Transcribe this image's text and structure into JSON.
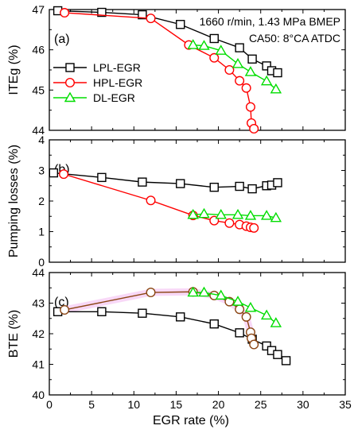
{
  "chart_data": [
    {
      "type": "line",
      "panel_label": "(a)",
      "ylabel": "ITEg (%)",
      "ylim": [
        44,
        47
      ],
      "yticks": [
        44,
        45,
        46,
        47
      ],
      "xlim": [
        0,
        35
      ],
      "annotation": [
        "1660 r/min, 1.43 MPa BMEP",
        "CA50: 8°CA ATDC"
      ],
      "legend": {
        "position": "left",
        "entries": [
          "LPL-EGR",
          "HPL-EGR",
          "DL-EGR"
        ]
      },
      "series": [
        {
          "name": "LPL-EGR",
          "marker": "square",
          "color": "#000000",
          "x": [
            1,
            6.2,
            11,
            15.5,
            19.5,
            22.5,
            24,
            25.7,
            26.3,
            27
          ],
          "y": [
            46.97,
            46.93,
            46.87,
            46.63,
            46.28,
            46.05,
            45.77,
            45.6,
            45.48,
            45.43
          ]
        },
        {
          "name": "HPL-EGR",
          "marker": "circle",
          "color": "#ff0000",
          "x": [
            1.8,
            12,
            16.5,
            19.5,
            21.3,
            22.5,
            23.3,
            23.8,
            23.9,
            24.2
          ],
          "y": [
            46.92,
            46.78,
            46.12,
            45.8,
            45.5,
            45.23,
            45.05,
            44.58,
            44.18,
            44.04
          ]
        },
        {
          "name": "DL-EGR",
          "marker": "triangle",
          "color": "#00dd00",
          "x": [
            17,
            18.3,
            20.3,
            22.3,
            23.8,
            25.7,
            26.8
          ],
          "y": [
            46.12,
            46.1,
            45.98,
            45.65,
            45.45,
            45.22,
            45.02
          ]
        }
      ]
    },
    {
      "type": "line",
      "panel_label": "(b)",
      "ylabel": "Pumping losses (%)",
      "ylim": [
        0,
        4
      ],
      "yticks": [
        0,
        1,
        2,
        3,
        4
      ],
      "xlim": [
        0,
        35
      ],
      "series": [
        {
          "name": "LPL-EGR",
          "marker": "square",
          "color": "#000000",
          "x": [
            0.5,
            6.2,
            11,
            15.5,
            19.5,
            22.5,
            24,
            25.7,
            26.3,
            27
          ],
          "y": [
            2.92,
            2.77,
            2.62,
            2.57,
            2.45,
            2.48,
            2.4,
            2.5,
            2.52,
            2.6
          ]
        },
        {
          "name": "HPL-EGR",
          "marker": "circle",
          "color": "#ff0000",
          "x": [
            1.7,
            12,
            17,
            19.5,
            21.3,
            22.5,
            23.3,
            23.8,
            24.2
          ],
          "y": [
            2.88,
            2.02,
            1.53,
            1.36,
            1.28,
            1.23,
            1.18,
            1.14,
            1.12
          ]
        },
        {
          "name": "DL-EGR",
          "marker": "triangle",
          "color": "#00dd00",
          "x": [
            17,
            18.3,
            20.3,
            22.3,
            23.8,
            25.7,
            26.8
          ],
          "y": [
            1.55,
            1.58,
            1.55,
            1.55,
            1.52,
            1.52,
            1.45
          ]
        }
      ]
    },
    {
      "type": "line",
      "panel_label": "(c)",
      "ylabel": "BTE (%)",
      "xlabel": "EGR rate (%)",
      "ylim": [
        40,
        44
      ],
      "yticks": [
        40,
        41,
        42,
        43,
        44
      ],
      "xlim": [
        0,
        35
      ],
      "xticks": [
        0,
        5,
        10,
        15,
        20,
        25,
        30,
        35
      ],
      "series": [
        {
          "name": "LPL-EGR",
          "marker": "square",
          "color": "#000000",
          "x": [
            1,
            6.2,
            11,
            15.5,
            19.5,
            22.5,
            24,
            25.7,
            26.3,
            27,
            28
          ],
          "y": [
            42.72,
            42.72,
            42.67,
            42.55,
            42.32,
            42.03,
            41.82,
            41.6,
            41.45,
            41.32,
            41.12
          ]
        },
        {
          "name": "HPL-EGR",
          "marker": "circle",
          "color": "#ff0000",
          "x": [
            1.8,
            12,
            17,
            19.5,
            21.3,
            22.5,
            23.3,
            23.8,
            23.9,
            24.2
          ],
          "y": [
            42.78,
            43.35,
            43.37,
            43.25,
            43.05,
            42.8,
            42.55,
            42.05,
            41.85,
            41.65
          ]
        },
        {
          "name": "DL-EGR",
          "marker": "triangle",
          "color": "#00dd00",
          "x": [
            17,
            18.3,
            20.3,
            22.3,
            23.8,
            25.7,
            26.8
          ],
          "y": [
            43.35,
            43.35,
            43.25,
            43.05,
            42.85,
            42.6,
            42.35
          ]
        }
      ]
    }
  ]
}
